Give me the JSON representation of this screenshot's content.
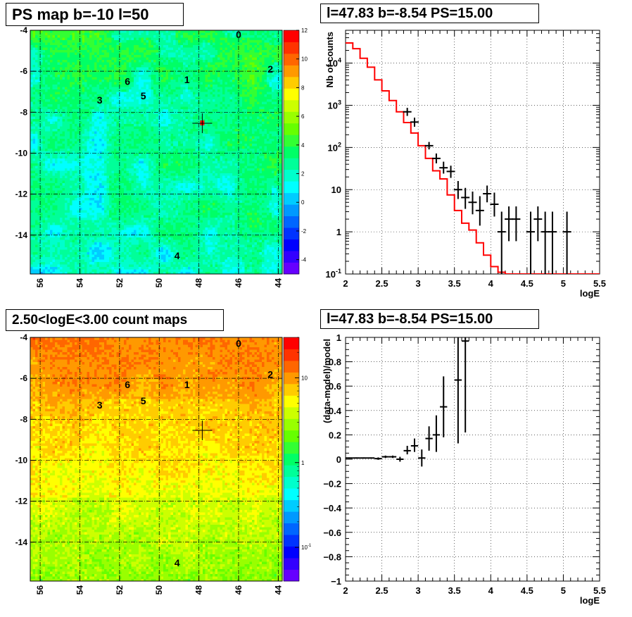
{
  "panels": {
    "tl": {
      "title": "PS map b=-10 l=50"
    },
    "tr": {
      "title": "l=47.83 b=-8.54 PS=15.00"
    },
    "bl": {
      "title": "2.50<logE<3.00 count maps"
    },
    "br": {
      "title": "l=47.83 b=-8.54 PS=15.00"
    }
  },
  "chart_data": [
    {
      "type": "heatmap",
      "panel": "tl",
      "title": "PS map b=-10 l=50",
      "xticks": [
        "56",
        "54",
        "52",
        "50",
        "48",
        "46",
        "44"
      ],
      "xtick_values": [
        56,
        54,
        52,
        50,
        48,
        46,
        44
      ],
      "yticks": [
        "-4",
        "-6",
        "-8",
        "-10",
        "-12",
        "-14"
      ],
      "ytick_values": [
        -4,
        -6,
        -8,
        -10,
        -12,
        -14
      ],
      "xlim": [
        56.5,
        43.8
      ],
      "ylim": [
        -15.9,
        -4.0
      ],
      "colorbar_ticks": [
        "12",
        "10",
        "8",
        "6",
        "4",
        "2",
        "0",
        "-2",
        "-4"
      ],
      "colorbar_values": [
        12,
        10,
        8,
        6,
        4,
        2,
        0,
        -2,
        -4
      ],
      "zlim": [
        -5,
        12
      ],
      "source_labels": [
        {
          "label": "0",
          "l": 46.0,
          "b": -4.2
        },
        {
          "label": "1",
          "l": 48.6,
          "b": -6.4
        },
        {
          "label": "2",
          "l": 44.4,
          "b": -5.9
        },
        {
          "label": "3",
          "l": 53.0,
          "b": -7.4
        },
        {
          "label": "4",
          "l": 49.1,
          "b": -15.0
        },
        {
          "label": "5",
          "l": 50.8,
          "b": -7.2
        },
        {
          "label": "6",
          "l": 51.6,
          "b": -6.5
        }
      ],
      "marker": {
        "l": 47.83,
        "b": -8.54
      }
    },
    {
      "type": "line",
      "panel": "tr",
      "title": "l=47.83 b=-8.54 PS=15.00",
      "xlabel": "logE",
      "ylabel": "Nb of counts",
      "xlim": [
        2.0,
        5.5
      ],
      "ylim": [
        0.1,
        60000
      ],
      "yscale": "log",
      "xticks": [
        "2",
        "2.5",
        "3",
        "3.5",
        "4",
        "4.5",
        "5",
        "5.5"
      ],
      "xtick_values": [
        2,
        2.5,
        3,
        3.5,
        4,
        4.5,
        5,
        5.5
      ],
      "yticks": [
        "10^-1",
        "1",
        "10",
        "10^2",
        "10^3",
        "10^4"
      ],
      "ytick_values": [
        0.1,
        1,
        10,
        100,
        1000,
        10000
      ],
      "grid": true,
      "series": [
        {
          "kind": "step",
          "color": "#ff0000",
          "edges": [
            2.0,
            2.1,
            2.2,
            2.3,
            2.4,
            2.5,
            2.6,
            2.7,
            2.8,
            2.9,
            3.0,
            3.1,
            3.2,
            3.3,
            3.4,
            3.5,
            3.6,
            3.7,
            3.8,
            3.9,
            4.0,
            4.1,
            4.2,
            4.3,
            4.4,
            4.5,
            4.6,
            4.7,
            4.8,
            4.9,
            5.0,
            5.1,
            5.2,
            5.3,
            5.4,
            5.5
          ],
          "values": [
            30000,
            22000,
            13000,
            8000,
            4000,
            2200,
            1300,
            700,
            390,
            220,
            110,
            55,
            28,
            18,
            7.5,
            3.2,
            1.6,
            1.1,
            0.55,
            0.28,
            0.15,
            0.11,
            0.1,
            0.1,
            0.1,
            0.1,
            0.1,
            0.1,
            0.1,
            0.1,
            0.1,
            0.1,
            0.1,
            0.1,
            0.1
          ]
        },
        {
          "kind": "errorbar",
          "color": "#000000",
          "x": [
            2.85,
            2.95,
            3.15,
            3.25,
            3.35,
            3.45,
            3.55,
            3.65,
            3.75,
            3.85,
            3.95,
            4.05,
            4.15,
            4.25,
            4.35,
            4.55,
            4.65,
            4.75,
            4.85,
            5.05
          ],
          "y": [
            700,
            400,
            110,
            55,
            33,
            27,
            10,
            6.5,
            5,
            3.2,
            8,
            4.5,
            1,
            2,
            2,
            1,
            2,
            1,
            1,
            1
          ],
          "ylo": [
            560,
            310,
            90,
            42,
            24,
            19,
            6,
            3.5,
            2.6,
            1.4,
            5,
            2.3,
            0.1,
            0.6,
            0.6,
            0.1,
            0.6,
            0.1,
            0.1,
            0.1
          ],
          "yhi": [
            870,
            510,
            135,
            72,
            46,
            37,
            16,
            11,
            9,
            7,
            12.5,
            8.5,
            3,
            4,
            4,
            3,
            4,
            3,
            3,
            3
          ]
        }
      ]
    },
    {
      "type": "heatmap",
      "panel": "bl",
      "title": "2.50<logE<3.00 count maps",
      "xticks": [
        "56",
        "54",
        "52",
        "50",
        "48",
        "46",
        "44"
      ],
      "xtick_values": [
        56,
        54,
        52,
        50,
        48,
        46,
        44
      ],
      "yticks": [
        "-4",
        "-6",
        "-8",
        "-10",
        "-12",
        "-14"
      ],
      "ytick_values": [
        -4,
        -6,
        -8,
        -10,
        -12,
        -14
      ],
      "xlim": [
        56.5,
        43.8
      ],
      "ylim": [
        -15.9,
        -4.0
      ],
      "colorbar_ticks": [
        "10",
        "1",
        "10^-1"
      ],
      "colorbar_values": [
        10,
        1,
        0.1
      ],
      "zscale": "log",
      "source_labels": [
        {
          "label": "0",
          "l": 46.0,
          "b": -4.3
        },
        {
          "label": "1",
          "l": 48.6,
          "b": -6.3
        },
        {
          "label": "2",
          "l": 44.4,
          "b": -5.8
        },
        {
          "label": "3",
          "l": 53.0,
          "b": -7.3
        },
        {
          "label": "4",
          "l": 49.1,
          "b": -15.0
        },
        {
          "label": "5",
          "l": 50.8,
          "b": -7.1
        },
        {
          "label": "6",
          "l": 51.6,
          "b": -6.3
        }
      ],
      "marker": {
        "l": 47.83,
        "b": -8.54
      }
    },
    {
      "type": "scatter",
      "panel": "br",
      "title": "l=47.83 b=-8.54 PS=15.00",
      "xlabel": "logE",
      "ylabel": "(data-model)/model",
      "xlim": [
        2.0,
        5.5
      ],
      "ylim": [
        -1.0,
        1.0
      ],
      "xticks": [
        "2",
        "2.5",
        "3",
        "3.5",
        "4",
        "4.5",
        "5",
        "5.5"
      ],
      "xtick_values": [
        2,
        2.5,
        3,
        3.5,
        4,
        4.5,
        5,
        5.5
      ],
      "yticks": [
        "1",
        "0.8",
        "0.6",
        "0.4",
        "0.2",
        "0",
        "−0.2",
        "−0.4",
        "−0.6",
        "−0.8",
        "−1"
      ],
      "ytick_values": [
        1,
        0.8,
        0.6,
        0.4,
        0.2,
        0,
        -0.2,
        -0.4,
        -0.6,
        -0.8,
        -1
      ],
      "grid": true,
      "series": [
        {
          "kind": "errorbar",
          "color": "#000000",
          "x": [
            2.05,
            2.15,
            2.25,
            2.35,
            2.45,
            2.55,
            2.65,
            2.75,
            2.85,
            2.95,
            3.05,
            3.15,
            3.25,
            3.35,
            3.55,
            3.65
          ],
          "y": [
            0.01,
            0.01,
            0.01,
            0.01,
            0.005,
            0.02,
            0.02,
            0.0,
            0.07,
            0.11,
            0.01,
            0.17,
            0.2,
            0.43,
            0.65,
            0.97
          ],
          "ylo": [
            0.005,
            0.005,
            0.005,
            0.005,
            -0.005,
            0.01,
            0.01,
            -0.02,
            0.04,
            0.06,
            -0.06,
            0.07,
            0.06,
            0.18,
            0.13,
            0.22
          ],
          "yhi": [
            0.015,
            0.015,
            0.015,
            0.015,
            0.015,
            0.03,
            0.03,
            0.02,
            0.11,
            0.17,
            0.08,
            0.27,
            0.36,
            0.68,
            1.0,
            1.0
          ],
          "xerr": [
            0.05,
            0.05,
            0.05,
            0.05,
            0.05,
            0.05,
            0.05,
            0.05,
            0.05,
            0.05,
            0.05,
            0.05,
            0.05,
            0.05,
            0.05,
            0.05
          ]
        }
      ]
    }
  ]
}
